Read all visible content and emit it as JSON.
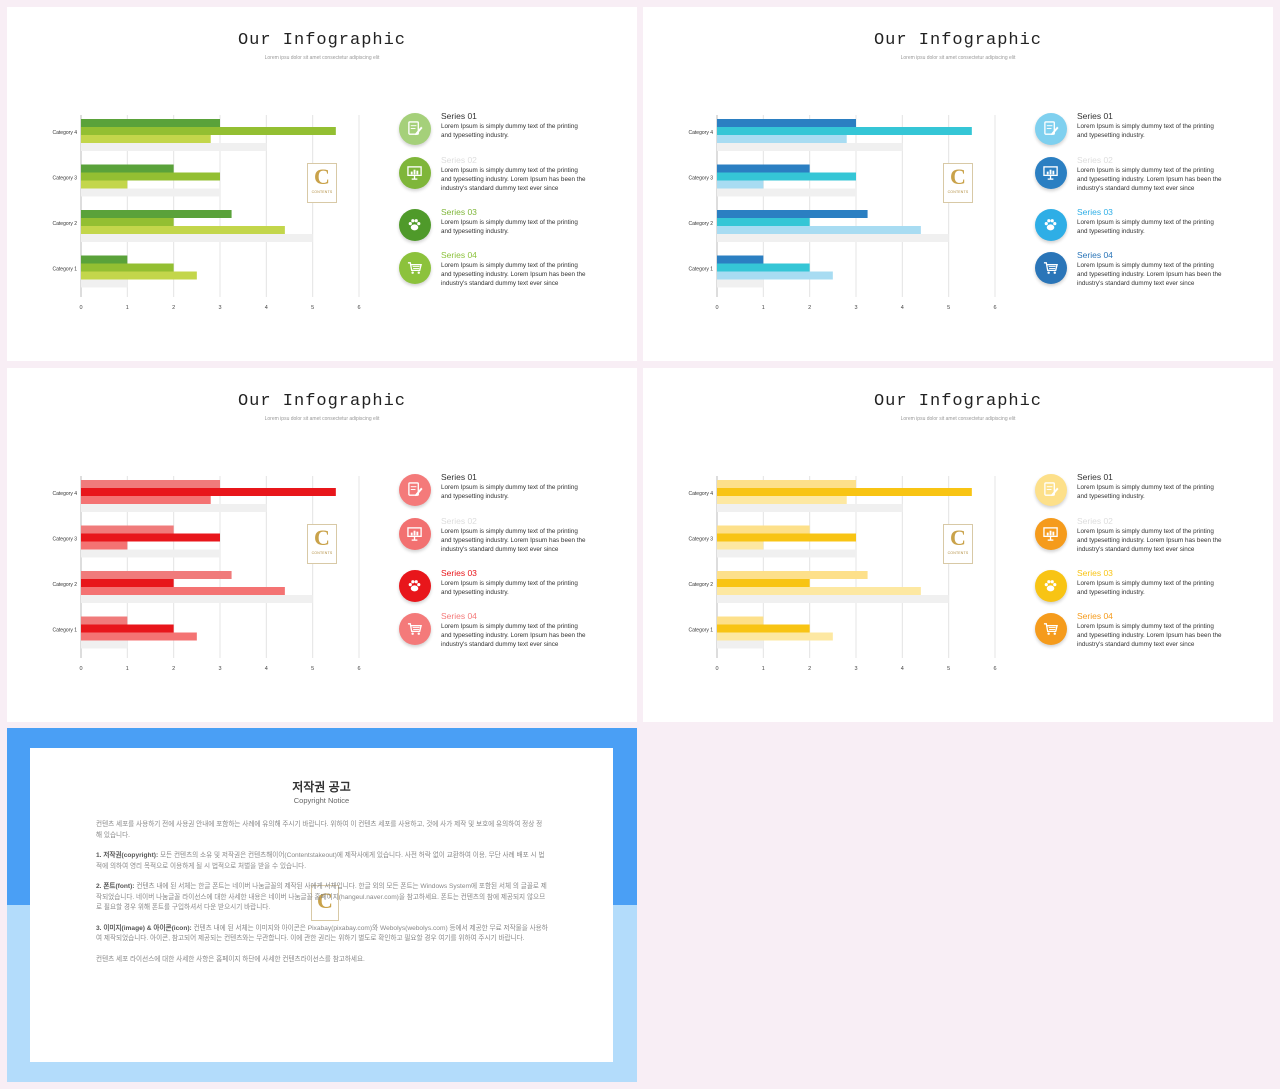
{
  "slides": [
    {
      "title": "Our Infographic",
      "subtitle": "Lorem ipsu dolor sit amet consectetur adipiscing elit",
      "theme": "green",
      "colors": [
        "#5aa23a",
        "#93bf32",
        "#c3d64b",
        "#f0f0f0"
      ],
      "legend_colors": [
        "#a5d07a",
        "#7fb63a",
        "#4f9a2a",
        "#8cc23c"
      ],
      "name_colors": [
        "#333333",
        "#dddddd",
        "#7fb63a",
        "#8cc23c"
      ]
    },
    {
      "title": "Our Infographic",
      "subtitle": "Lorem ipsu dolor sit amet consectetur adipiscing elit",
      "theme": "blue",
      "colors": [
        "#2b7fc2",
        "#35c6d6",
        "#a8dcf2",
        "#f0f0f0"
      ],
      "legend_colors": [
        "#7fd0ef",
        "#2b7fc2",
        "#2eaee6",
        "#2a75b8"
      ],
      "name_colors": [
        "#333333",
        "#dddddd",
        "#2eaee6",
        "#2a75b8"
      ]
    },
    {
      "title": "Our Infographic",
      "subtitle": "Lorem ipsu dolor sit amet consectetur adipiscing elit",
      "theme": "red",
      "colors": [
        "#f07b7b",
        "#e8161b",
        "#f47373",
        "#f0f0f0"
      ],
      "legend_colors": [
        "#f47a7a",
        "#f27171",
        "#e8161b",
        "#f47a7a"
      ],
      "name_colors": [
        "#333333",
        "#dddddd",
        "#e8161b",
        "#f47a7a"
      ]
    },
    {
      "title": "Our Infographic",
      "subtitle": "Lorem ipsu dolor sit amet consectetur adipiscing elit",
      "theme": "yellow",
      "colors": [
        "#fde08a",
        "#f8c414",
        "#fde8a2",
        "#f0f0f0"
      ],
      "legend_colors": [
        "#fde08a",
        "#f59b1c",
        "#f8c414",
        "#f59b1c"
      ],
      "name_colors": [
        "#333333",
        "#dddddd",
        "#f8c414",
        "#f59b1c"
      ]
    }
  ],
  "legend": [
    {
      "name": "Series 01",
      "desc": "Lorem Ipsum is simply dummy text of the printing and typesetting industry.",
      "icon": "document-edit-icon"
    },
    {
      "name": "Series 02",
      "desc": "Lorem Ipsum is simply dummy text of the printing and typesetting industry. Lorem Ipsum has been the industry's standard dummy text ever since",
      "icon": "presentation-chart-icon"
    },
    {
      "name": "Series 03",
      "desc": "Lorem Ipsum is simply dummy text of the printing and typesetting industry.",
      "icon": "paw-icon"
    },
    {
      "name": "Series 04",
      "desc": "Lorem Ipsum is simply dummy text of the printing and typesetting industry. Lorem Ipsum has been the industry's standard dummy text ever since",
      "icon": "shopping-cart-icon"
    }
  ],
  "logo": {
    "letter": "C",
    "text": "CONTENTS"
  },
  "chart_data": {
    "type": "bar",
    "orientation": "horizontal",
    "categories": [
      "Category 1",
      "Category 2",
      "Category 3",
      "Category 4"
    ],
    "series": [
      {
        "values": [
          1,
          3.25,
          2,
          3
        ]
      },
      {
        "values": [
          2,
          2,
          3,
          5.5
        ]
      },
      {
        "values": [
          2.5,
          4.4,
          1,
          2.8
        ]
      },
      {
        "values": [
          1,
          5,
          3,
          4
        ]
      }
    ],
    "x_ticks": [
      "0",
      "1",
      "2",
      "3",
      "4",
      "5",
      "6"
    ],
    "xlim": [
      0,
      6
    ],
    "grid": true
  },
  "copyright": {
    "title": "저작권 공고",
    "subtitle": "Copyright Notice",
    "paragraphs": [
      {
        "head": "",
        "text": "컨텐츠 세포를 사용하기 전에 사용권 안내에 포함하는 사례에 유의해 주시기 바랍니다. 위하여 이 컨텐츠 세포를 사용하고, 것에 사가 제작 및 보호에 유의하여 정상 정해 있습니다."
      },
      {
        "head": "1. 저작권(copyright):",
        "text": " 모든 컨텐츠의 소유 및 저작권은 컨텐츠해이어(Contentstakeout)에 제작사에게 있습니다. 사전 허락 없이 교환하여 이용, 무단 사례 배포 시 법적에 의하여 영리 목적으로 이용하게 될 시 법적으로 처벌을 받을 수 있습니다."
      },
      {
        "head": "2. 폰트(font):",
        "text": " 컨텐츠 내에 된 서체는 한글 폰트는 네이버 나눔글꼴의 제작된 사에게 서체입니다. 한글 외의 모든 폰트는 Windows System에 포함된 서체 의 글꼴로 제작되었습니다. 네이버 나눔글꼴 라이선스에 대한 사세한 내용은 네이버 나눔글꼴 홈페이지(hangeul.naver.com)을 참고하세요. 폰트는 컨텐츠의 참에 제공되지 않으므로 필요할 경우 위해 폰트를 구입하셔서 다운 받으시기 바랍니다."
      },
      {
        "head": "3. 이미지(image) & 아이콘(icon):",
        "text": " 컨텐츠 내에 된 서체는 이미지와 아이콘은 Pixabay(pixabay.com)와 Webolys(webolys.com) 등에서 제공한 무료 저작물을 사용하여 제작되었습니다. 아이콘, 참고되어 제공되는 컨텐츠와는 무관합니다. 이에 관한 권리는 위하기 별도로 확인하고 필요할 경우 여기를 위하여 주시기 바랍니다."
      },
      {
        "head": "",
        "text": "컨텐츠 세포 라이선스에 대한 사세한 사항은 홈페이지 하단에 사세한 컨텐츠라이선스를 참고하세요."
      }
    ]
  }
}
